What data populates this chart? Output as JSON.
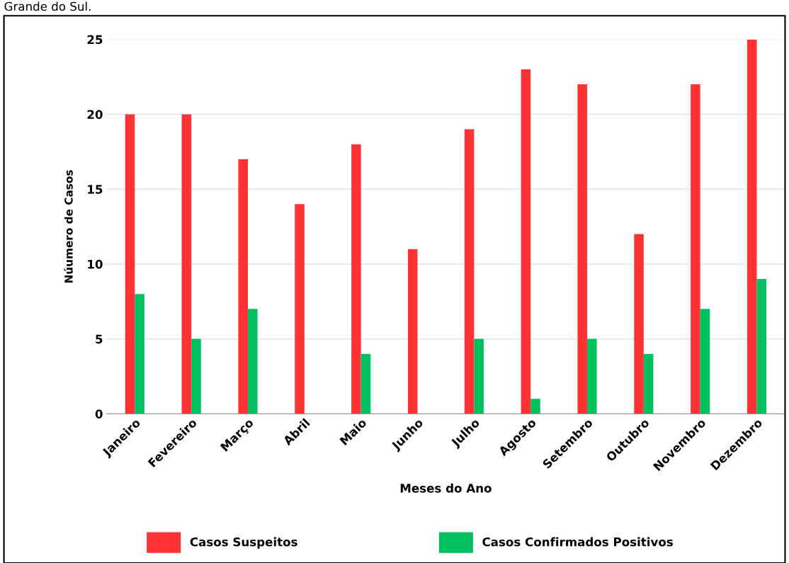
{
  "chart_data": {
    "type": "bar",
    "xlabel": "Meses do Ano",
    "ylabel": "Núumero de Casos",
    "annotations": [
      "Grande do Sul."
    ],
    "categories": [
      "Janeiro",
      "Fevereiro",
      "Março",
      "Abril",
      "Maio",
      "Junho",
      "Julho",
      "Agosto",
      "Setembro",
      "Outubro",
      "Novembro",
      "Dezembro"
    ],
    "series": [
      {
        "name": "Casos Suspeitos",
        "color": "#ff3333",
        "values": [
          20,
          20,
          17,
          14,
          18,
          11,
          19,
          23,
          22,
          12,
          22,
          25
        ]
      },
      {
        "name": "Casos Confirmados Positivos",
        "color": "#00c060",
        "values": [
          8,
          5,
          7,
          0,
          4,
          0,
          5,
          1,
          5,
          4,
          7,
          9
        ]
      }
    ],
    "ylim": [
      0,
      25
    ],
    "yticks": [
      0,
      5,
      10,
      15,
      20,
      25
    ],
    "grid": "y",
    "legend": "bottom"
  }
}
